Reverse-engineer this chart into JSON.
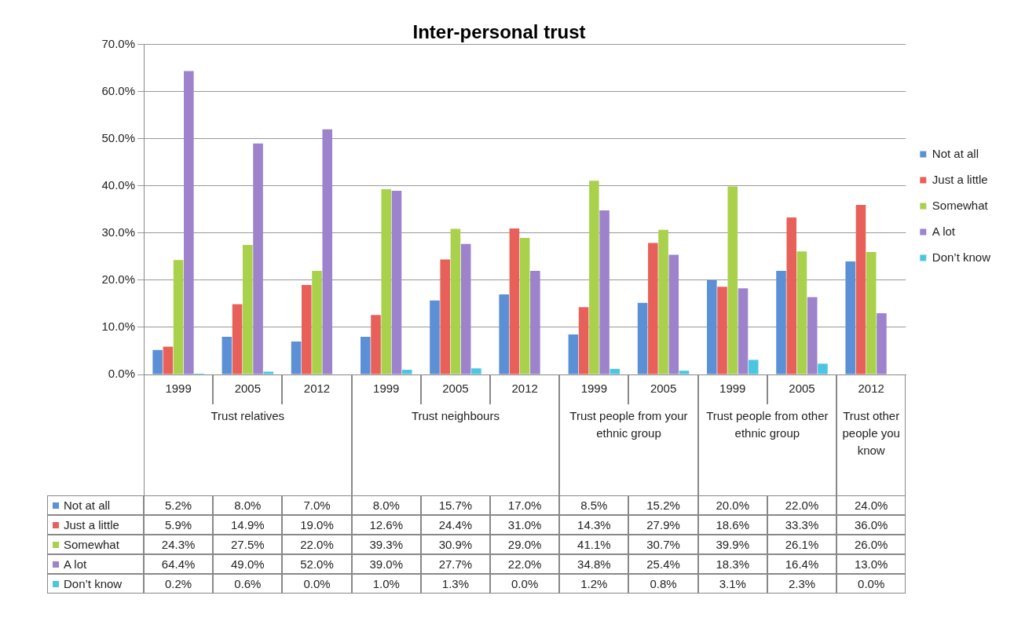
{
  "chart_data": {
    "type": "bar",
    "title": "Inter-personal trust",
    "categories": [
      "1999",
      "2005",
      "2012",
      "1999",
      "2005",
      "2012",
      "1999",
      "2005",
      "1999",
      "2005",
      "2012"
    ],
    "annotations": [
      "Trust relatives",
      "Trust neighbours",
      "Trust people from your ethnic group",
      "Trust people from other ethnic group",
      "Trust other people you know"
    ],
    "series": [
      {
        "name": "Not at all",
        "color": "#5b8fd6",
        "values": [
          5.2,
          8.0,
          7.0,
          8.0,
          15.7,
          17.0,
          8.5,
          15.2,
          20.0,
          22.0,
          24.0
        ],
        "value_labels": [
          "5.2%",
          "8.0%",
          "7.0%",
          "8.0%",
          "15.7%",
          "17.0%",
          "8.5%",
          "15.2%",
          "20.0%",
          "22.0%",
          "24.0%"
        ]
      },
      {
        "name": "Just a little",
        "color": "#e8605a",
        "values": [
          5.9,
          14.9,
          19.0,
          12.6,
          24.4,
          31.0,
          14.3,
          27.9,
          18.6,
          33.3,
          36.0
        ],
        "value_labels": [
          "5.9%",
          "14.9%",
          "19.0%",
          "12.6%",
          "24.4%",
          "31.0%",
          "14.3%",
          "27.9%",
          "18.6%",
          "33.3%",
          "36.0%"
        ]
      },
      {
        "name": "Somewhat",
        "color": "#a9d14b",
        "values": [
          24.3,
          27.5,
          22.0,
          39.3,
          30.9,
          29.0,
          41.1,
          30.7,
          39.9,
          26.1,
          26.0
        ],
        "value_labels": [
          "24.3%",
          "27.5%",
          "22.0%",
          "39.3%",
          "30.9%",
          "29.0%",
          "41.1%",
          "30.7%",
          "39.9%",
          "26.1%",
          "26.0%"
        ]
      },
      {
        "name": "A lot",
        "color": "#9d82cc",
        "values": [
          64.4,
          49.0,
          52.0,
          39.0,
          27.7,
          22.0,
          34.8,
          25.4,
          18.3,
          16.4,
          13.0
        ],
        "value_labels": [
          "64.4%",
          "49.0%",
          "52.0%",
          "39.0%",
          "27.7%",
          "22.0%",
          "34.8%",
          "25.4%",
          "18.3%",
          "16.4%",
          "13.0%"
        ]
      },
      {
        "name": "Don’t know",
        "color": "#4cc6e0",
        "values": [
          0.2,
          0.6,
          0.0,
          1.0,
          1.3,
          0.0,
          1.2,
          0.8,
          3.1,
          2.3,
          0.0
        ],
        "value_labels": [
          "0.2%",
          "0.6%",
          "0.0%",
          "1.0%",
          "1.3%",
          "0.0%",
          "1.2%",
          "0.8%",
          "3.1%",
          "2.3%",
          "0.0%"
        ]
      }
    ],
    "ylim": [
      0,
      70
    ],
    "yticks": [
      {
        "value": 0,
        "label": "0.0%"
      },
      {
        "value": 10,
        "label": "10.0%"
      },
      {
        "value": 20,
        "label": "20.0%"
      },
      {
        "value": 30,
        "label": "30.0%"
      },
      {
        "value": 40,
        "label": "40.0%"
      },
      {
        "value": 50,
        "label": "50.0%"
      },
      {
        "value": 60,
        "label": "60.0%"
      },
      {
        "value": 70,
        "label": "70.0%"
      }
    ],
    "grid": "y",
    "legend": "right"
  }
}
